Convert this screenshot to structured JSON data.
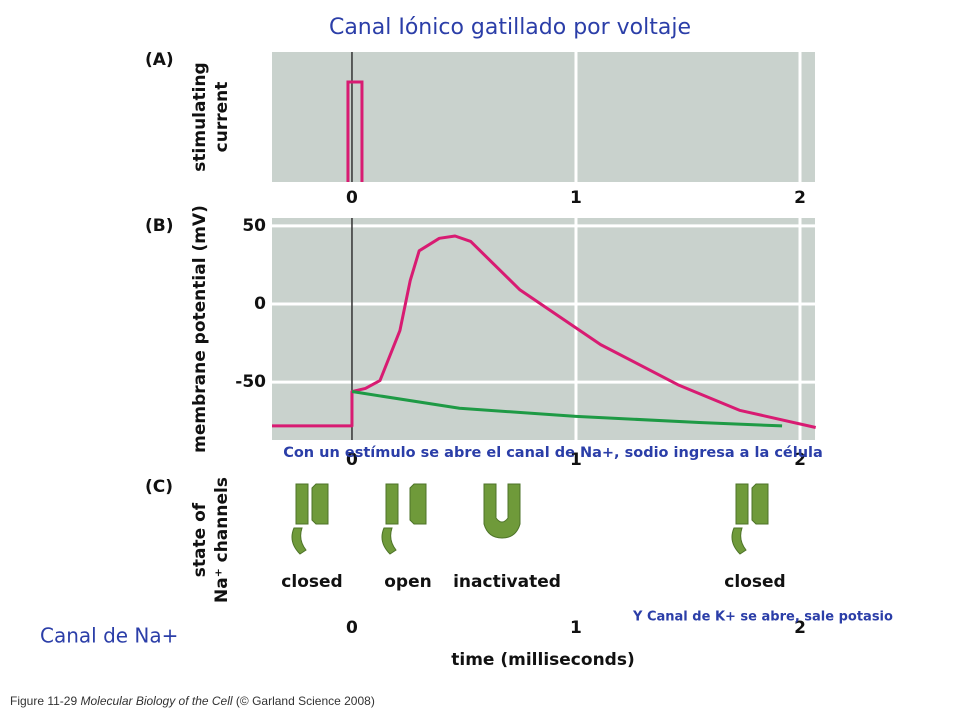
{
  "title": "Canal Iónico gatillado por voltaje",
  "chart_data": [
    {
      "type": "pulse",
      "panel": "(A)",
      "ylabel": [
        "stimulating",
        "current"
      ],
      "xlim": [
        -0.357,
        2.067
      ],
      "xticks": [
        0,
        1,
        2
      ],
      "grid": true,
      "color": "#d81b72"
    },
    {
      "type": "line",
      "panel": "(B)",
      "ylabel": "membrane potential (mV)",
      "xlim": [
        -0.357,
        2.067
      ],
      "ylim": [
        -87,
        55
      ],
      "xticks": [
        0,
        1,
        2
      ],
      "yticks": [
        50,
        0,
        -50
      ],
      "grid": true,
      "series": [
        {
          "color": "#d81b72",
          "x": [
            -0.357,
            0,
            0,
            0.06,
            0.125,
            0.214,
            0.26,
            0.3,
            0.39,
            0.46,
            0.53,
            0.75,
            1.11,
            1.46,
            1.73,
            2.07
          ],
          "values": [
            -78,
            -78,
            -56,
            -54,
            -49,
            -17,
            15,
            34,
            42,
            43.5,
            40,
            9,
            -26,
            -52,
            -68,
            -79
          ]
        },
        {
          "color": "#1e9a45",
          "x": [
            0,
            0.48,
            1,
            1.55,
            1.92
          ],
          "values": [
            -56,
            -66.7,
            -71.9,
            -75.8,
            -78
          ]
        }
      ]
    }
  ],
  "panel_c": {
    "panel": "(C)",
    "ylabel": [
      "state of",
      "Na⁺ channels"
    ],
    "states": [
      "closed",
      "open",
      "inactivated",
      "closed"
    ],
    "xticks": [
      0,
      1,
      2
    ],
    "xlabel": "time (milliseconds)"
  },
  "annotations": [
    "Con un estímulo se abre el canal de Na+, sodio ingresa a la célula",
    "Y Canal de K+ se abre, sale potasio",
    "Canal de Na+"
  ],
  "caption": [
    "Figure 11-29 ",
    "Molecular Biology of the Cell",
    " (© Garland Science 2008)"
  ]
}
